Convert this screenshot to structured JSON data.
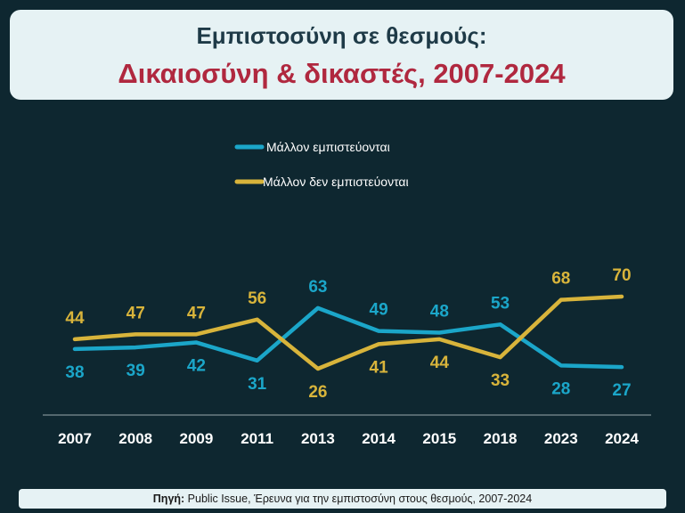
{
  "title": {
    "line1": "Εμπιστοσύνη σε θεσμούς:",
    "line2": "Δικαιοσύνη & δικαστές, 2007-2024"
  },
  "source": {
    "label": "Πηγή:",
    "text": " Public Issue, Έρευνα για την εμπιστοσύνη στους θεσμούς, 2007-2024"
  },
  "colors": {
    "trust": "#1ba6c9",
    "distrust": "#d8b43b",
    "background": "#0e2730",
    "title_red": "#b0283f"
  },
  "chart_data": {
    "type": "line",
    "categories": [
      "2007",
      "2008",
      "2009",
      "2011",
      "2013",
      "2014",
      "2015",
      "2018",
      "2023",
      "2024"
    ],
    "series": [
      {
        "name": "Μάλλον εμπιστεύονται",
        "values": [
          38,
          39,
          42,
          31,
          63,
          49,
          48,
          53,
          28,
          27
        ]
      },
      {
        "name": "Μάλλον δεν εμπιστεύονται",
        "values": [
          44,
          47,
          47,
          56,
          26,
          41,
          44,
          33,
          68,
          70
        ]
      }
    ],
    "legend_position": "top-center",
    "grid": false
  }
}
